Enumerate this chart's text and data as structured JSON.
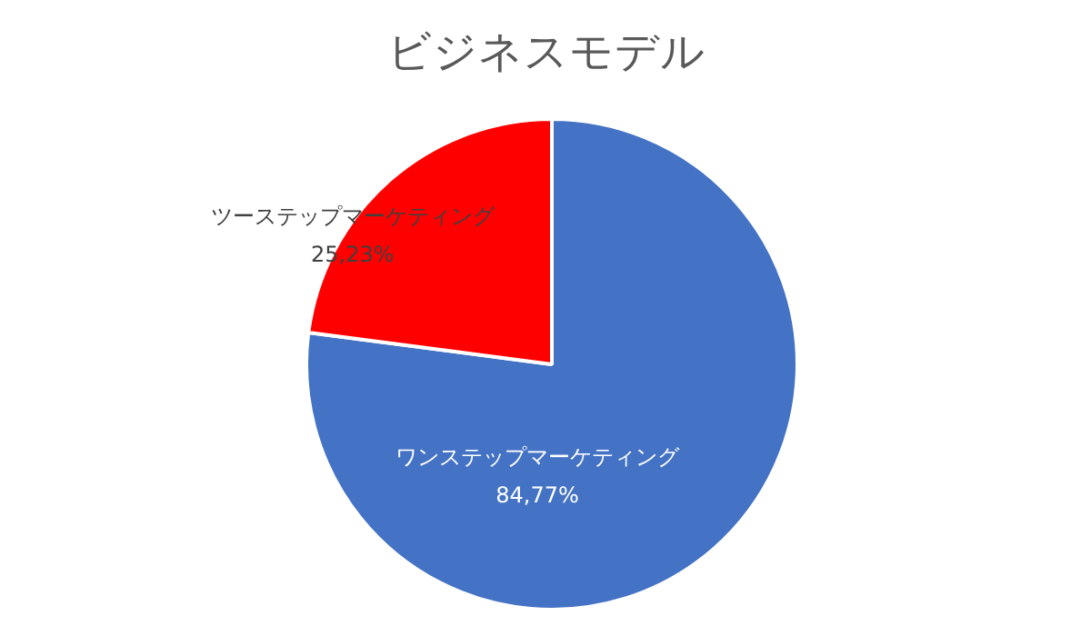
{
  "chart_data": {
    "type": "pie",
    "title": "ビジネスモデル",
    "categories": [
      "ワンステップマーケティング",
      "ツーステップマーケティング"
    ],
    "values": [
      84.77,
      25.23
    ],
    "colors": [
      "#4472c4",
      "#ff0000"
    ],
    "value_labels": [
      "84,77%",
      "25,23%"
    ]
  }
}
